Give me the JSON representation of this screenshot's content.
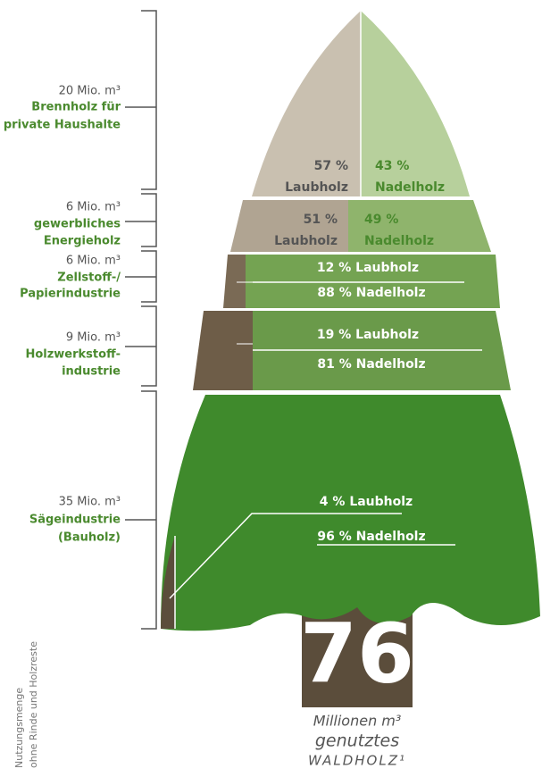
{
  "segments": [
    {
      "amount": "20 Mio. m³",
      "label": [
        "Brennholz für",
        "private Haushalte"
      ],
      "laub": [
        "57 %",
        "Laubholz"
      ],
      "nadel": [
        "43 %",
        "Nadelholz"
      ]
    },
    {
      "amount": "6 Mio. m³",
      "label": [
        "gewerbliches",
        "Energieholz"
      ],
      "laub": [
        "51 %",
        "Laubholz"
      ],
      "nadel": [
        "49 %",
        "Nadelholz"
      ]
    },
    {
      "amount": "6 Mio. m³",
      "label": [
        "Zellstoff-/",
        "Papierindustrie"
      ],
      "laub": [
        "12 % Laubholz"
      ],
      "nadel": [
        "88 % Nadelholz"
      ]
    },
    {
      "amount": "9 Mio. m³",
      "label": [
        "Holzwerkstoff-",
        "industrie"
      ],
      "laub": [
        "19 % Laubholz"
      ],
      "nadel": [
        "81 % Nadelholz"
      ]
    },
    {
      "amount": "35 Mio. m³",
      "label": [
        "Sägeindustrie",
        "(Bauholz)"
      ],
      "laub": [
        "4 % Laubholz"
      ],
      "nadel": [
        "96 % Nadelholz"
      ]
    }
  ],
  "total": {
    "number": "76",
    "lines": [
      "Millionen m³",
      "genutztes",
      "WALDHOLZ¹"
    ]
  },
  "note": [
    "Nutzungsmenge",
    "ohne Rinde und Holzreste"
  ]
}
